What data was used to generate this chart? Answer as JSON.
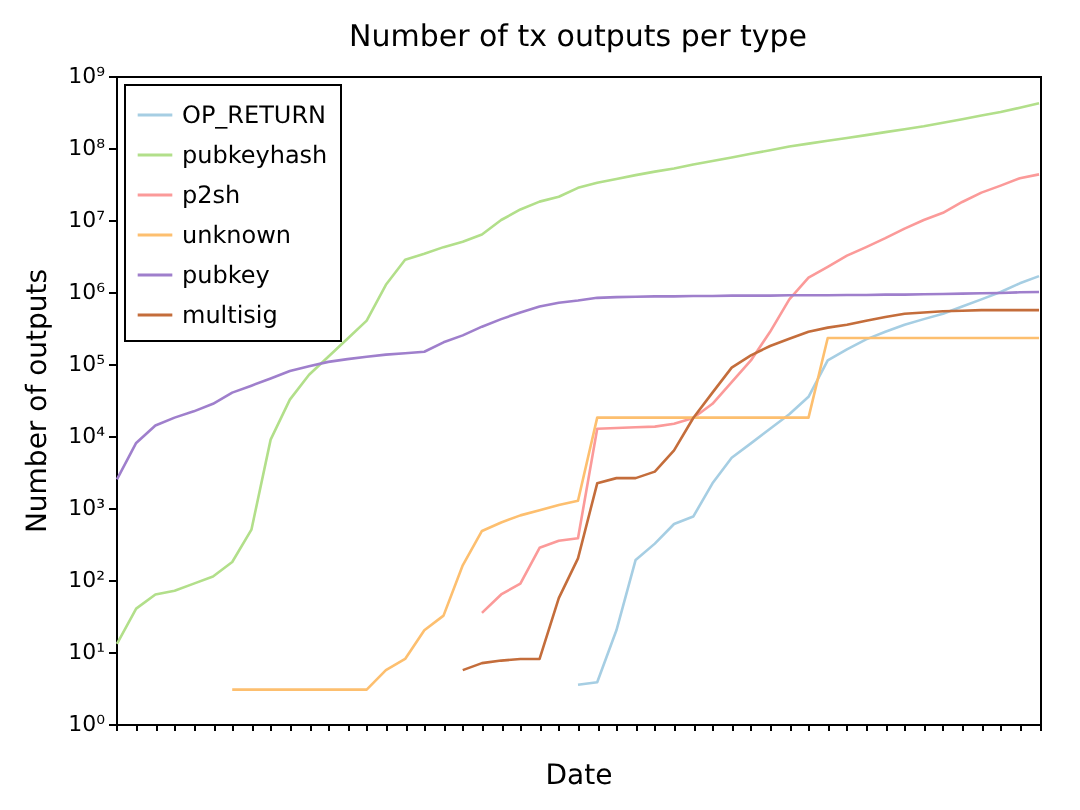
{
  "chart_data": {
    "type": "line",
    "title": "Number of tx outputs per type",
    "xlabel": "Date",
    "ylabel": "Number of outputs",
    "log": "y",
    "grid": false,
    "legend": "top left",
    "line_style": "solid",
    "marker": "none",
    "categories": [
      null,
      null,
      null,
      null,
      null,
      null,
      null,
      null,
      null,
      null,
      null,
      null,
      null,
      null,
      null,
      null,
      null,
      null,
      null,
      null,
      null,
      null,
      null,
      null,
      null,
      null,
      null,
      null,
      null,
      null,
      null,
      null,
      null,
      null,
      null,
      null,
      null,
      null,
      null,
      null,
      null,
      null,
      null,
      null,
      null,
      null,
      null,
      null,
      null
    ],
    "ylim": [
      1,
      1000000000
    ],
    "yticks": [
      {
        "value": 1,
        "label": "10⁰"
      },
      {
        "value": 10,
        "label": "10¹"
      },
      {
        "value": 100,
        "label": "10²"
      },
      {
        "value": 1000,
        "label": "10³"
      },
      {
        "value": 10000,
        "label": "10⁴"
      },
      {
        "value": 100000,
        "label": "10⁵"
      },
      {
        "value": 1000000,
        "label": "10⁶"
      },
      {
        "value": 10000000,
        "label": "10⁷"
      },
      {
        "value": 100000000,
        "label": "10⁸"
      },
      {
        "value": 1000000000,
        "label": "10⁹"
      }
    ],
    "series": [
      {
        "name": "OP_RETURN",
        "color": "#a6cee3",
        "values": [
          null,
          null,
          null,
          null,
          null,
          null,
          null,
          null,
          null,
          null,
          null,
          null,
          null,
          null,
          null,
          null,
          null,
          null,
          null,
          null,
          null,
          null,
          null,
          null,
          3.5,
          3.8,
          20,
          190,
          320,
          600,
          760,
          2200,
          5000,
          7900,
          12600,
          20000,
          35000,
          112000,
          160000,
          220000,
          280000,
          350000,
          420000,
          500000,
          630000,
          790000,
          1000000,
          1320000,
          1660000
        ]
      },
      {
        "name": "pubkeyhash",
        "color": "#b2df8a",
        "values": [
          13,
          40,
          63,
          71,
          89,
          112,
          178,
          500,
          8900,
          32000,
          71000,
          126000,
          224000,
          400000,
          1260000,
          2800000,
          3400000,
          4200000,
          5000000,
          6300000,
          10000000,
          14000000,
          18000000,
          21000000,
          28000000,
          33000000,
          37000000,
          42000000,
          47000000,
          52000000,
          59000000,
          66000000,
          74000000,
          83000000,
          93000000,
          105000000,
          115000000,
          126000000,
          138000000,
          151000000,
          166000000,
          182000000,
          200000000,
          224000000,
          251000000,
          282000000,
          316000000,
          363000000,
          417000000
        ]
      },
      {
        "name": "p2sh",
        "color": "#fb9a99",
        "values": [
          null,
          null,
          null,
          null,
          null,
          null,
          null,
          null,
          null,
          null,
          null,
          null,
          null,
          null,
          null,
          null,
          null,
          null,
          null,
          35,
          63,
          89,
          280,
          350,
          380,
          12600,
          12900,
          13200,
          13500,
          14800,
          17800,
          28000,
          56000,
          112000,
          280000,
          790000,
          1580000,
          2240000,
          3200000,
          4200000,
          5600000,
          7600000,
          10000000,
          12600000,
          17800000,
          24000000,
          30000000,
          38000000,
          43000000
        ]
      },
      {
        "name": "unknown",
        "color": "#fdbf6f",
        "values": [
          null,
          null,
          null,
          null,
          null,
          null,
          3,
          3,
          3,
          3,
          3,
          3,
          3,
          3,
          5.6,
          8,
          20,
          32,
          160,
          480,
          630,
          790,
          930,
          1100,
          1260,
          18000,
          18000,
          18000,
          18000,
          18000,
          18000,
          18000,
          18000,
          18000,
          18000,
          18000,
          18000,
          230000,
          230000,
          230000,
          230000,
          230000,
          230000,
          230000,
          230000,
          230000,
          230000,
          230000,
          230000
        ]
      },
      {
        "name": "pubkey",
        "color": "#9f7fcc",
        "values": [
          2500,
          8000,
          14000,
          18000,
          22000,
          28000,
          40000,
          50000,
          63000,
          80000,
          93000,
          107000,
          117000,
          126000,
          135000,
          141000,
          148000,
          200000,
          250000,
          330000,
          420000,
          520000,
          630000,
          710000,
          760000,
          830000,
          850000,
          860000,
          870000,
          870000,
          880000,
          880000,
          890000,
          890000,
          890000,
          900000,
          900000,
          900000,
          910000,
          910000,
          920000,
          920000,
          930000,
          940000,
          950000,
          960000,
          970000,
          990000,
          1000000
        ]
      },
      {
        "name": "multisig",
        "color": "#c46d3b",
        "values": [
          null,
          null,
          null,
          null,
          null,
          null,
          null,
          null,
          null,
          null,
          null,
          null,
          null,
          null,
          null,
          null,
          null,
          null,
          5.6,
          7,
          7.6,
          8,
          8,
          56,
          200,
          2200,
          2600,
          2600,
          3200,
          6300,
          17800,
          40000,
          89000,
          132000,
          178000,
          224000,
          280000,
          320000,
          350000,
          400000,
          450000,
          500000,
          520000,
          540000,
          550000,
          560000,
          560000,
          560000,
          560000
        ]
      }
    ]
  }
}
